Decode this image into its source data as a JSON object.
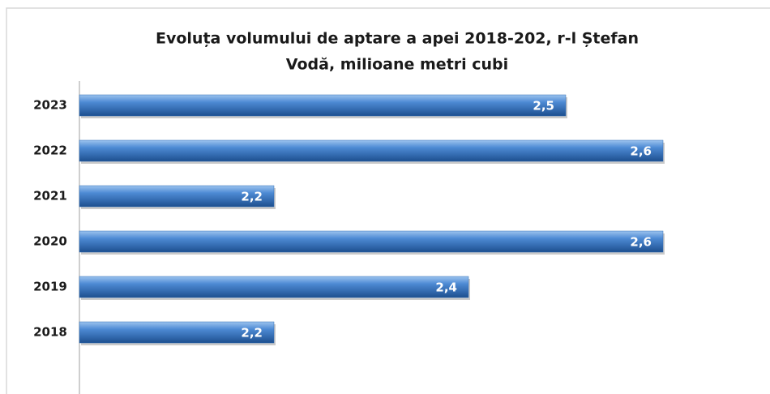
{
  "chart_data": {
    "type": "bar",
    "orientation": "horizontal",
    "title": [
      "Evoluța volumului de aptare a apei 2018-202, r-l Ștefan",
      "Vodă, milioane metri cubi"
    ],
    "categories": [
      "2023",
      "2022",
      "2021",
      "2020",
      "2019",
      "2018"
    ],
    "values": [
      2.5,
      2.6,
      2.2,
      2.6,
      2.4,
      2.2
    ],
    "value_labels": [
      "2,5",
      "2,6",
      "2,2",
      "2,6",
      "2,4",
      "2,2"
    ],
    "color": "#2f6db5",
    "xlim": [
      2,
      2.7
    ]
  }
}
